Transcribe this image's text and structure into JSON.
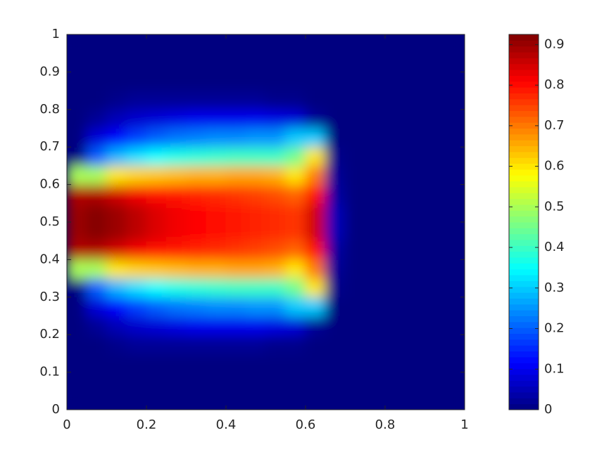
{
  "chart_data": {
    "type": "heatmap",
    "colormap": "jet",
    "x": [
      0.025,
      0.075,
      0.125,
      0.175,
      0.225,
      0.275,
      0.325,
      0.375,
      0.425,
      0.475,
      0.525,
      0.575,
      0.625,
      0.675,
      0.725,
      0.775,
      0.825,
      0.875,
      0.925,
      0.975
    ],
    "y": [
      0.025,
      0.075,
      0.125,
      0.175,
      0.225,
      0.275,
      0.325,
      0.375,
      0.425,
      0.475,
      0.525,
      0.575,
      0.625,
      0.675,
      0.725,
      0.775,
      0.825,
      0.875,
      0.925,
      0.975
    ],
    "z": [
      [
        0,
        0,
        0,
        0,
        0,
        0,
        0,
        0,
        0,
        0,
        0,
        0,
        0,
        0,
        0,
        0,
        0,
        0,
        0,
        0
      ],
      [
        0,
        0,
        0,
        0,
        0,
        0,
        0,
        0,
        0,
        0,
        0,
        0,
        0,
        0,
        0,
        0,
        0,
        0,
        0,
        0
      ],
      [
        0,
        0,
        0,
        0,
        0,
        0,
        0,
        0,
        0,
        0,
        0,
        0,
        0,
        0,
        0,
        0,
        0,
        0,
        0,
        0
      ],
      [
        0,
        0,
        0.01,
        0.02,
        0.02,
        0.02,
        0.02,
        0.02,
        0.02,
        0.02,
        0.01,
        0.01,
        0,
        0,
        0,
        0,
        0,
        0,
        0,
        0
      ],
      [
        0,
        0.02,
        0.05,
        0.07,
        0.08,
        0.09,
        0.1,
        0.1,
        0.1,
        0.1,
        0.09,
        0.08,
        0.02,
        0,
        0,
        0,
        0,
        0,
        0,
        0
      ],
      [
        0,
        0.08,
        0.12,
        0.17,
        0.2,
        0.22,
        0.23,
        0.24,
        0.24,
        0.25,
        0.25,
        0.3,
        0.3,
        0,
        0,
        0,
        0,
        0,
        0,
        0
      ],
      [
        0,
        0.2,
        0.28,
        0.32,
        0.35,
        0.37,
        0.38,
        0.39,
        0.4,
        0.4,
        0.4,
        0.45,
        0.6,
        0.01,
        0,
        0,
        0,
        0,
        0,
        0
      ],
      [
        0.5,
        0.5,
        0.6,
        0.62,
        0.63,
        0.64,
        0.65,
        0.65,
        0.66,
        0.66,
        0.65,
        0.6,
        0.7,
        0.02,
        0,
        0,
        0,
        0,
        0,
        0
      ],
      [
        0.88,
        0.88,
        0.85,
        0.82,
        0.8,
        0.79,
        0.78,
        0.77,
        0.76,
        0.75,
        0.74,
        0.72,
        0.8,
        0.03,
        0,
        0,
        0,
        0,
        0,
        0
      ],
      [
        0.9,
        0.92,
        0.9,
        0.87,
        0.84,
        0.82,
        0.81,
        0.8,
        0.79,
        0.78,
        0.77,
        0.76,
        0.85,
        0.05,
        0,
        0,
        0,
        0,
        0,
        0
      ],
      [
        0.9,
        0.92,
        0.9,
        0.87,
        0.84,
        0.82,
        0.81,
        0.8,
        0.79,
        0.78,
        0.77,
        0.76,
        0.85,
        0.05,
        0,
        0,
        0,
        0,
        0,
        0
      ],
      [
        0.88,
        0.88,
        0.85,
        0.82,
        0.8,
        0.79,
        0.78,
        0.77,
        0.76,
        0.75,
        0.74,
        0.72,
        0.8,
        0.03,
        0,
        0,
        0,
        0,
        0,
        0
      ],
      [
        0.5,
        0.5,
        0.6,
        0.62,
        0.63,
        0.64,
        0.65,
        0.65,
        0.66,
        0.66,
        0.65,
        0.6,
        0.7,
        0.02,
        0,
        0,
        0,
        0,
        0,
        0
      ],
      [
        0,
        0.2,
        0.28,
        0.32,
        0.35,
        0.37,
        0.38,
        0.39,
        0.4,
        0.4,
        0.4,
        0.45,
        0.6,
        0.01,
        0,
        0,
        0,
        0,
        0,
        0
      ],
      [
        0,
        0.08,
        0.12,
        0.17,
        0.2,
        0.22,
        0.23,
        0.24,
        0.24,
        0.25,
        0.25,
        0.3,
        0.3,
        0,
        0,
        0,
        0,
        0,
        0,
        0
      ],
      [
        0,
        0.02,
        0.05,
        0.07,
        0.08,
        0.09,
        0.1,
        0.1,
        0.1,
        0.1,
        0.09,
        0.08,
        0.02,
        0,
        0,
        0,
        0,
        0,
        0,
        0
      ],
      [
        0,
        0,
        0.01,
        0.02,
        0.02,
        0.02,
        0.02,
        0.02,
        0.02,
        0.02,
        0.01,
        0.01,
        0,
        0,
        0,
        0,
        0,
        0,
        0,
        0
      ],
      [
        0,
        0,
        0,
        0,
        0,
        0,
        0,
        0,
        0,
        0,
        0,
        0,
        0,
        0,
        0,
        0,
        0,
        0,
        0,
        0
      ],
      [
        0,
        0,
        0,
        0,
        0,
        0,
        0,
        0,
        0,
        0,
        0,
        0,
        0,
        0,
        0,
        0,
        0,
        0,
        0,
        0
      ],
      [
        0,
        0,
        0,
        0,
        0,
        0,
        0,
        0,
        0,
        0,
        0,
        0,
        0,
        0,
        0,
        0,
        0,
        0,
        0,
        0
      ]
    ],
    "xlim": [
      0,
      1
    ],
    "ylim": [
      0,
      1
    ],
    "xticks": [
      0,
      0.2,
      0.4,
      0.6,
      0.8,
      1
    ],
    "yticks": [
      0,
      0.1,
      0.2,
      0.3,
      0.4,
      0.5,
      0.6,
      0.7,
      0.8,
      0.9,
      1
    ],
    "clim": [
      0,
      0.925
    ],
    "cticks": [
      0,
      0.1,
      0.2,
      0.3,
      0.4,
      0.5,
      0.6,
      0.7,
      0.8,
      0.9
    ]
  }
}
